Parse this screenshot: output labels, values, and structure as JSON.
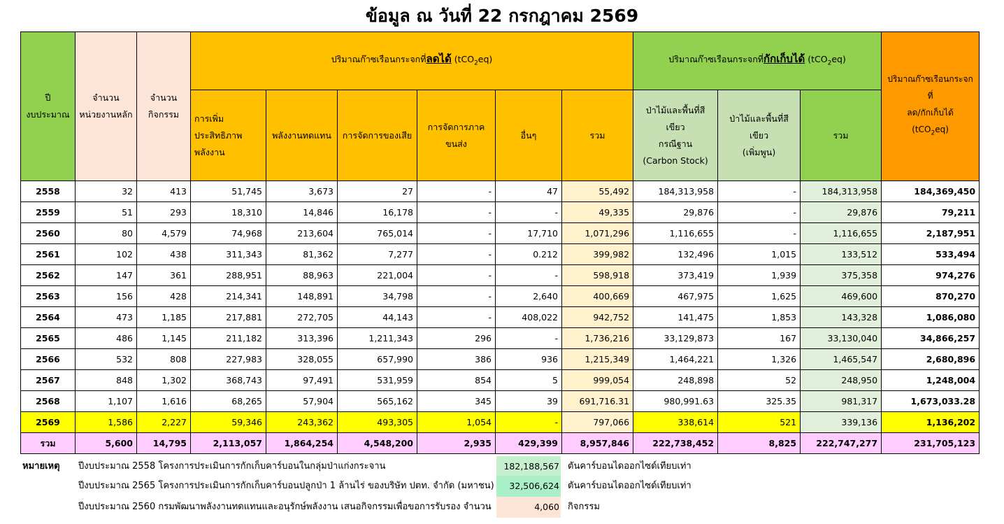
{
  "title": "ข้อมูล ณ วันที่ 22 กรกฎาคม 2569",
  "headers": {
    "year_line1": "ปี",
    "year_line2": "งบประมาณ",
    "units_line1": "จำนวน",
    "units_line2": "หน่วยงานหลัก",
    "acts_line1": "จำนวน",
    "acts_line2": "กิจกรรม",
    "reduced_prefix": "ปริมาณก๊าซเรือนกระจกที่",
    "reduced_key": "ลดได้",
    "stored_prefix": "ปริมาณก๊าซเรือนกระจกที่",
    "stored_key": "กักเก็บได้",
    "unit_a": "(tCO",
    "unit_sub": "2",
    "unit_b": "eq)",
    "total_line1": "ปริมาณก๊าซเรือนกระจกที่",
    "total_line2": "ลด/กักเก็บได้",
    "eff_line1": "การเพิ่ม",
    "eff_line2": "ประสิทธิภาพ",
    "eff_line3": "พลังงาน",
    "renewable": "พลังงานทดแทน",
    "waste": "การจัดการของเสีย",
    "transport": "การจัดการภาคขนส่ง",
    "other": "อื่นๆ",
    "sum": "รวม",
    "forest_base_line1": "ป่าไม้และพื้นที่สีเขียว",
    "forest_base_line2": "กรณีฐาน",
    "forest_base_line3": "(Carbon Stock)",
    "forest_add_line1": "ป่าไม้และพื้นที่สีเขียว",
    "forest_add_line2": "(เพิ่มพูน)",
    "sum2": "รวม"
  },
  "rows": [
    [
      "2558",
      "32",
      "413",
      "51,745",
      "3,673",
      "27",
      "-",
      "47",
      "55,492",
      "184,313,958",
      "-",
      "184,313,958",
      "184,369,450"
    ],
    [
      "2559",
      "51",
      "293",
      "18,310",
      "14,846",
      "16,178",
      "-",
      "-",
      "49,335",
      "29,876",
      "-",
      "29,876",
      "79,211"
    ],
    [
      "2560",
      "80",
      "4,579",
      "74,968",
      "213,604",
      "765,014",
      "-",
      "17,710",
      "1,071,296",
      "1,116,655",
      "-",
      "1,116,655",
      "2,187,951"
    ],
    [
      "2561",
      "102",
      "438",
      "311,343",
      "81,362",
      "7,277",
      "-",
      "0.212",
      "399,982",
      "132,496",
      "1,015",
      "133,512",
      "533,494"
    ],
    [
      "2562",
      "147",
      "361",
      "288,951",
      "88,963",
      "221,004",
      "-",
      "-",
      "598,918",
      "373,419",
      "1,939",
      "375,358",
      "974,276"
    ],
    [
      "2563",
      "156",
      "428",
      "214,341",
      "148,891",
      "34,798",
      "-",
      "2,640",
      "400,669",
      "467,975",
      "1,625",
      "469,600",
      "870,270"
    ],
    [
      "2564",
      "473",
      "1,185",
      "217,881",
      "272,705",
      "44,143",
      "-",
      "408,022",
      "942,752",
      "141,475",
      "1,853",
      "143,328",
      "1,086,080"
    ],
    [
      "2565",
      "486",
      "1,145",
      "211,182",
      "313,396",
      "1,211,343",
      "296",
      "-",
      "1,736,216",
      "33,129,873",
      "167",
      "33,130,040",
      "34,866,257"
    ],
    [
      "2566",
      "532",
      "808",
      "227,983",
      "328,055",
      "657,990",
      "386",
      "936",
      "1,215,349",
      "1,464,221",
      "1,326",
      "1,465,547",
      "2,680,896"
    ],
    [
      "2567",
      "848",
      "1,302",
      "368,743",
      "97,491",
      "531,959",
      "854",
      "5",
      "999,054",
      "248,898",
      "52",
      "248,950",
      "1,248,004"
    ],
    [
      "2568",
      "1,107",
      "1,616",
      "68,265",
      "57,904",
      "565,162",
      "345",
      "39",
      "691,716.31",
      "980,991.63",
      "325.35",
      "981,317",
      "1,673,033.28"
    ],
    [
      "2569",
      "1,586",
      "2,227",
      "59,346",
      "243,362",
      "493,305",
      "1,054",
      "-",
      "797,066",
      "338,614",
      "521",
      "339,136",
      "1,136,202"
    ]
  ],
  "total": [
    "รวม",
    "5,600",
    "14,795",
    "2,113,057",
    "1,864,254",
    "4,548,200",
    "2,935",
    "429,399",
    "8,957,846",
    "222,738,452",
    "8,825",
    "222,747,277",
    "231,705,123"
  ],
  "notes": {
    "label": "หมายเหตุ",
    "items": [
      {
        "text": "ปีงบประมาณ 2558 โครงการประเมินการกักเก็บคาร์บอนในกลุ่มป่าแก่งกระจาน",
        "value": "182,188,567",
        "unit": "ตันคาร์บอนไดออกไซด์เทียบเท่า",
        "color": "#C6EFCE"
      },
      {
        "text": "ปีงบประมาณ 2565 โครงการประเมินการกักเก็บคาร์บอนปลูกป่า 1 ล้านไร่ ของบริษัท ปตท. จำกัด (มหาชน)",
        "value": "32,506,624",
        "unit": "ตันคาร์บอนไดออกไซด์เทียบเท่า",
        "color": "#A9F0C8"
      },
      {
        "text": "ปีงบประมาณ 2560 กรมพัฒนาพลังงานทดแทนและอนุรักษ์พลังงาน เสนอกิจกรรมเพื่อขอการรับรอง จำนวน",
        "value": "4,060",
        "unit": "กิจกรรม",
        "color": "#FCE4D6"
      }
    ]
  },
  "colors": {
    "green": "#92D050",
    "pink": "#FCE4D6",
    "orange": "#FFC000",
    "light_green": "#C6E0B4",
    "deep_orange": "#FF9900",
    "highlight": "#FFFF00",
    "total_row": "#FFCCFF"
  }
}
